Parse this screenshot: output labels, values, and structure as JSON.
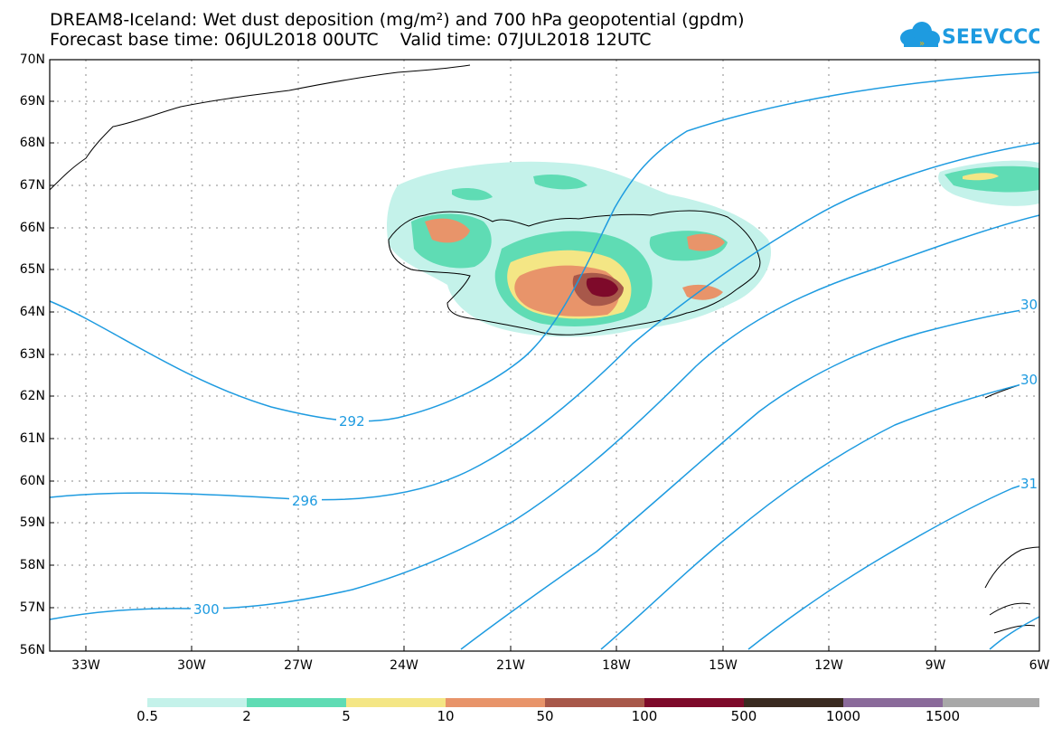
{
  "header": {
    "title_line1": "DREAM8-Iceland: Wet dust deposition (mg/m²) and 700 hPa geopotential (gpdm)",
    "title_line2": "Forecast base time: 06JUL2018 00UTC    Valid time: 07JUL2018 12UTC",
    "logo_text": "SEEVCCC",
    "brand_color": "#1e9be0"
  },
  "map": {
    "lat_labels": [
      "70N",
      "69N",
      "68N",
      "67N",
      "66N",
      "65N",
      "64N",
      "63N",
      "62N",
      "61N",
      "60N",
      "59N",
      "58N",
      "57N",
      "56N"
    ],
    "lon_labels": [
      "33W",
      "30W",
      "27W",
      "24W",
      "21W",
      "18W",
      "15W",
      "12W",
      "9W",
      "6W"
    ],
    "contour_color": "#1e9be0",
    "contour_labels": [
      "292",
      "296",
      "300",
      "30",
      "30",
      "31"
    ]
  },
  "legend": {
    "labels": [
      "0.5",
      "2",
      "5",
      "10",
      "50",
      "100",
      "500",
      "1000",
      "1500"
    ],
    "colors": [
      "#c4f2ea",
      "#5fdcb4",
      "#f4e685",
      "#e8946a",
      "#a8584a",
      "#7e0a2a",
      "#3a2a20",
      "#8a6a9a",
      "#a8a8a8"
    ]
  }
}
